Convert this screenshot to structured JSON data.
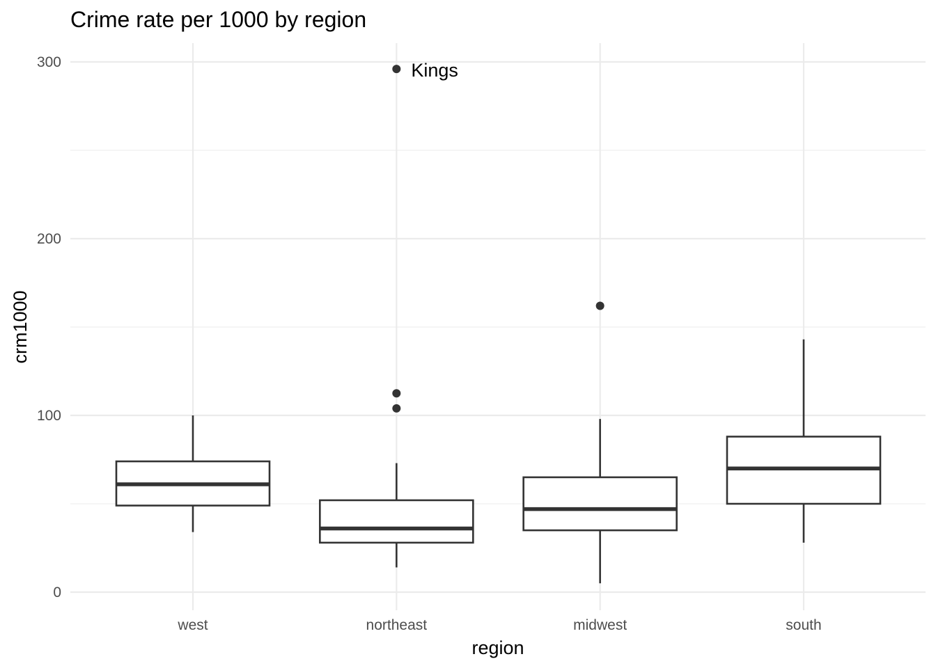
{
  "chart_data": {
    "type": "boxplot",
    "title": "Crime rate per 1000 by region",
    "xlabel": "region",
    "ylabel": "crm1000",
    "ylim": [
      -11,
      311
    ],
    "yticks": [
      0,
      100,
      200,
      300
    ],
    "y_minor_ticks": [
      50,
      150,
      250
    ],
    "grid": true,
    "categories": [
      "west",
      "northeast",
      "midwest",
      "south"
    ],
    "boxes": [
      {
        "category": "west",
        "lower_whisker": 34,
        "q1": 49,
        "median": 61,
        "q3": 74,
        "upper_whisker": 100,
        "outliers": []
      },
      {
        "category": "northeast",
        "lower_whisker": 14,
        "q1": 28,
        "median": 36,
        "q3": 52,
        "upper_whisker": 73,
        "outliers": [
          104,
          112.5,
          296
        ]
      },
      {
        "category": "midwest",
        "lower_whisker": 5,
        "q1": 35,
        "median": 47,
        "q3": 65,
        "upper_whisker": 98,
        "outliers": [
          162
        ]
      },
      {
        "category": "south",
        "lower_whisker": 28,
        "q1": 50,
        "median": 70,
        "q3": 88,
        "upper_whisker": 143,
        "outliers": []
      }
    ],
    "annotations": [
      {
        "category": "northeast",
        "y": 296,
        "text": "Kings"
      }
    ]
  }
}
